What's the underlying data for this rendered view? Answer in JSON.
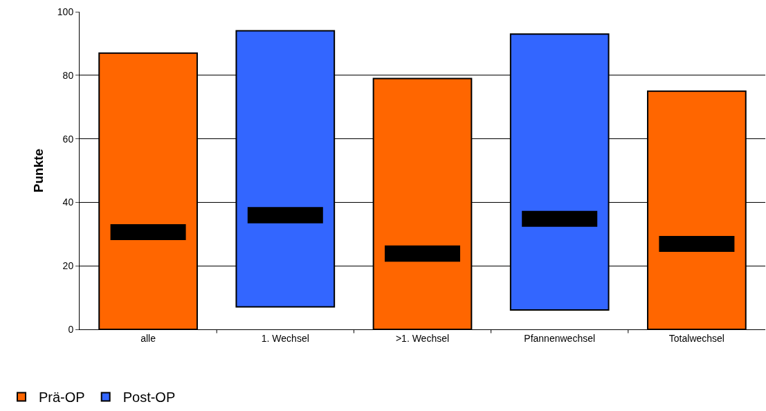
{
  "chart_data": {
    "type": "bar",
    "ylabel": "Punkte",
    "categories": [
      "alle",
      "1. Wechsel",
      ">1. Wechsel",
      "Pfannenwechsel",
      "Totalwechsel"
    ],
    "series": [
      {
        "name": "Prä-OP",
        "color": "#ff6600",
        "values": [
          87,
          null,
          79,
          null,
          75
        ]
      },
      {
        "name": "Post-OP",
        "color": "#3366ff",
        "values": [
          null,
          86.9,
          null,
          86.9,
          null
        ],
        "base": [
          null,
          7.1,
          null,
          6.1,
          null
        ]
      },
      {
        "color": "#000000",
        "values": [
          5,
          5.1,
          5.1,
          5,
          5
        ],
        "base": [
          28.1,
          33.4,
          21.3,
          32.3,
          24.4
        ]
      }
    ],
    "ylim": [
      0,
      100
    ],
    "yticks": [
      0,
      20,
      40,
      60,
      80,
      100
    ],
    "grid": "y",
    "legend": "bottom left"
  }
}
